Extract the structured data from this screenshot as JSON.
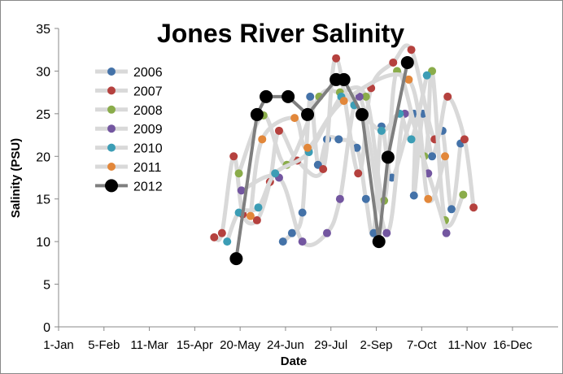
{
  "chart_data": {
    "type": "line",
    "title": "Jones River Salinity",
    "xlabel": "Date",
    "ylabel": "Salinity (PSU)",
    "ylim": [
      0,
      35
    ],
    "yticks": [
      0,
      5,
      10,
      15,
      20,
      25,
      30,
      35
    ],
    "xlim_day_of_year": [
      1,
      366
    ],
    "xticks": [
      {
        "day": 1,
        "label": "1-Jan"
      },
      {
        "day": 36,
        "label": "5-Feb"
      },
      {
        "day": 71,
        "label": "11-Mar"
      },
      {
        "day": 106,
        "label": "15-Apr"
      },
      {
        "day": 141,
        "label": "20-May"
      },
      {
        "day": 176,
        "label": "24-Jun"
      },
      {
        "day": 211,
        "label": "29-Jul"
      },
      {
        "day": 246,
        "label": "2-Sep"
      },
      {
        "day": 281,
        "label": "7-Oct"
      },
      {
        "day": 316,
        "label": "11-Nov"
      },
      {
        "day": 351,
        "label": "16-Dec"
      }
    ],
    "legend_position": "left",
    "series": [
      {
        "name": "2006",
        "color": "#4472a8",
        "x": [
          174,
          181,
          189,
          195,
          201,
          208,
          217,
          231,
          238,
          244,
          250,
          258,
          275,
          275,
          282,
          289,
          297,
          304,
          311
        ],
        "y": [
          10,
          11,
          13.4,
          27,
          19,
          22,
          22,
          21,
          15,
          11,
          23.5,
          17.5,
          25,
          15.4,
          25,
          20,
          23,
          13.8,
          21.5
        ]
      },
      {
        "name": "2007",
        "color": "#b5413e",
        "x": [
          121,
          127,
          136,
          143,
          154,
          164,
          171,
          185,
          205,
          215,
          232,
          242,
          259,
          273,
          291,
          301,
          314,
          321
        ],
        "y": [
          10.5,
          11,
          20,
          13.2,
          12.5,
          17,
          23,
          19.5,
          18.5,
          31.5,
          18,
          28,
          31,
          32.5,
          22,
          27,
          22,
          14
        ]
      },
      {
        "name": "2008",
        "color": "#8aac4a",
        "x": [
          140,
          159,
          177,
          202,
          218,
          238,
          252,
          262,
          283,
          289,
          299,
          313
        ],
        "y": [
          18,
          24.8,
          19,
          27,
          27.5,
          27,
          14.8,
          30,
          20,
          30,
          12.5,
          15.5
        ]
      },
      {
        "name": "2009",
        "color": "#7356a0",
        "x": [
          142,
          171,
          189,
          208,
          218,
          233,
          254,
          268,
          286,
          300
        ],
        "y": [
          16,
          17.5,
          10,
          11,
          15,
          27,
          11,
          25,
          18,
          11
        ]
      },
      {
        "name": "2010",
        "color": "#3c9db5",
        "x": [
          131,
          140,
          155,
          168,
          194,
          219,
          229,
          250,
          264,
          273,
          285
        ],
        "y": [
          10,
          13.4,
          14,
          18,
          20.5,
          27,
          26,
          23,
          25,
          22,
          29.5
        ]
      },
      {
        "name": "2011",
        "color": "#e2873a",
        "x": [
          149,
          158,
          183,
          193,
          221,
          271,
          286,
          299
        ],
        "y": [
          13,
          22,
          24.5,
          21,
          26.5,
          29,
          15,
          20
        ]
      },
      {
        "name": "2012",
        "color": "#000000",
        "x": [
          138,
          154,
          161,
          178,
          193,
          215,
          221,
          235,
          248,
          255,
          270
        ],
        "y": [
          8,
          24.9,
          27,
          27,
          24.9,
          29,
          29,
          24.9,
          10,
          19.9,
          31
        ]
      }
    ]
  }
}
